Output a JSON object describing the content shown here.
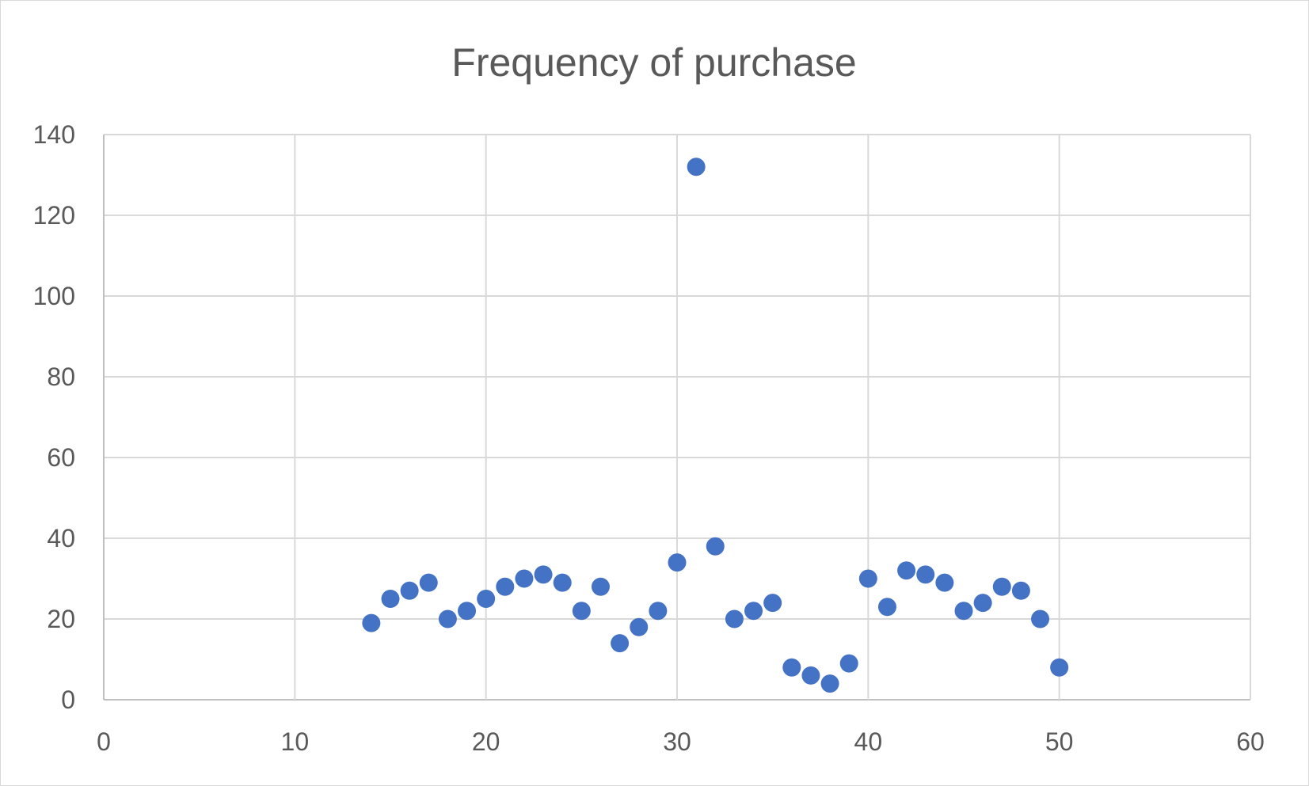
{
  "chart_data": {
    "type": "scatter",
    "title": "Frequency of purchase",
    "xlabel": "",
    "ylabel": "",
    "xlim": [
      0,
      60
    ],
    "ylim": [
      0,
      140
    ],
    "x_ticks": [
      0,
      10,
      20,
      30,
      40,
      50,
      60
    ],
    "y_ticks": [
      0,
      20,
      40,
      60,
      80,
      100,
      120,
      140
    ],
    "grid": true,
    "legend": "none",
    "marker_color": "#4472C4",
    "series": [
      {
        "x": [
          14,
          15,
          16,
          17,
          18,
          19,
          20,
          21,
          22,
          23,
          24,
          25,
          26,
          27,
          28,
          29,
          30,
          31,
          32,
          33,
          34,
          35,
          36,
          37,
          38,
          39,
          40,
          41,
          42,
          43,
          44,
          45,
          46,
          47,
          48,
          49,
          50
        ],
        "y": [
          19,
          25,
          27,
          29,
          20,
          22,
          25,
          28,
          30,
          31,
          29,
          22,
          28,
          14,
          18,
          22,
          34,
          132,
          38,
          20,
          22,
          24,
          8,
          6,
          4,
          9,
          30,
          23,
          32,
          31,
          29,
          22,
          24,
          28,
          27,
          20,
          8
        ]
      }
    ]
  }
}
